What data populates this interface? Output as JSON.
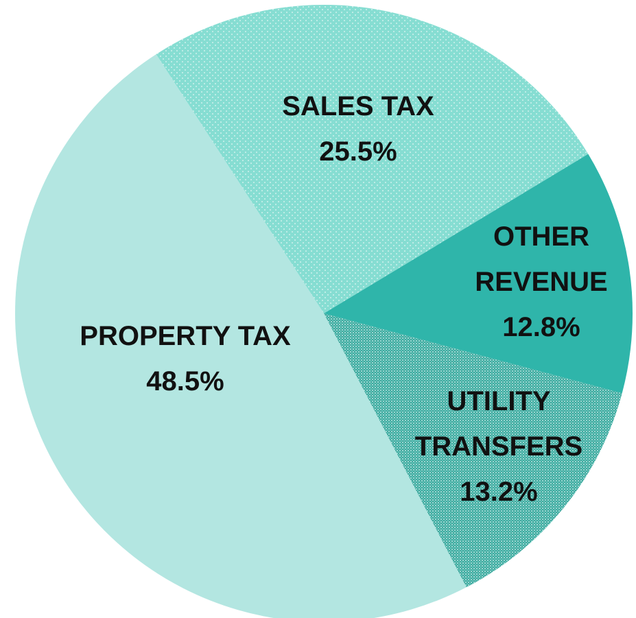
{
  "chart_data": {
    "type": "pie",
    "categories": [
      "SALES TAX",
      "OTHER REVENUE",
      "UTILITY TRANSFERS",
      "PROPERTY TAX"
    ],
    "values": [
      25.5,
      12.8,
      13.2,
      48.5
    ],
    "value_labels": [
      "25.5%",
      "12.8%",
      "13.2%",
      "48.5%"
    ],
    "colors": [
      "#86ddd2",
      "#2fb5aa",
      "#5ec3b9",
      "#b3e6e1"
    ],
    "textures": [
      "dots",
      "none",
      "checker",
      "none"
    ]
  }
}
